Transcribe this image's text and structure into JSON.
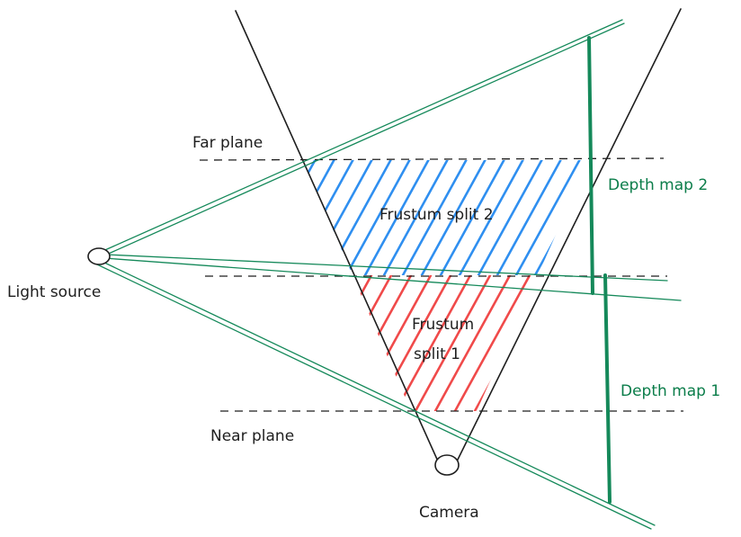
{
  "labels": {
    "far_plane": "Far plane",
    "near_plane": "Near plane",
    "light_source": "Light source",
    "camera": "Camera",
    "frustum_split_2": "Frustum split 2",
    "frustum_split_1_line1": "Frustum",
    "frustum_split_1_line2": "split 1",
    "depth_map_2": "Depth map 2",
    "depth_map_1": "Depth map 1"
  },
  "colors": {
    "ink": "#1e1e1e",
    "light_rays": "#15895a",
    "split_2_hatch": "#2f8ff0",
    "split_1_hatch": "#f04a4a"
  }
}
